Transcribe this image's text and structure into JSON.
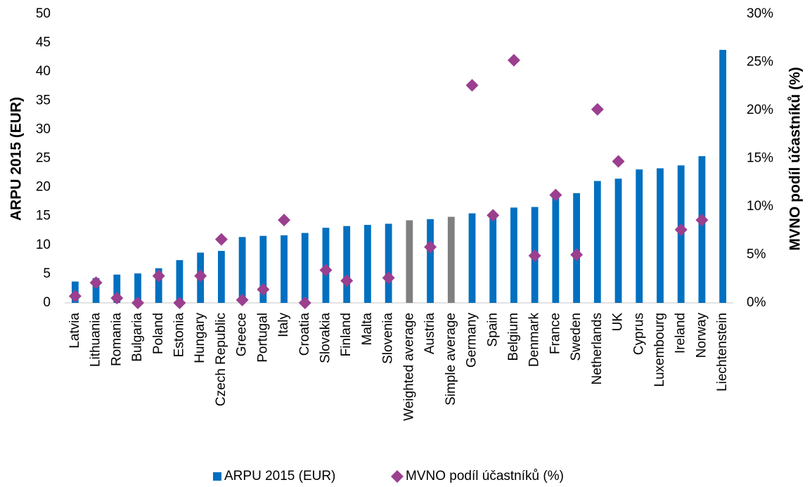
{
  "chart_data": {
    "type": "bar_scatter",
    "y_label": "ARPU 2015 (EUR)",
    "y2_label": "MVNO podíl účastníků (%)",
    "categories": [
      "Latvia",
      "Lithuania",
      "Romania",
      "Bulgaria",
      "Poland",
      "Estonia",
      "Hungary",
      "Czech Republic",
      "Greece",
      "Portugal",
      "Italy",
      "Croatia",
      "Slovakia",
      "Finland",
      "Malta",
      "Slovenia",
      "Weighted average",
      "Austria",
      "Simple average",
      "Germany",
      "Spain",
      "Belgium",
      "Denmark",
      "France",
      "Sweden",
      "Netherlands",
      "UK",
      "Cyprus",
      "Luxembourg",
      "Ireland",
      "Norway",
      "Liechtenstein"
    ],
    "series": [
      {
        "name": "ARPU 2015 (EUR)",
        "type": "bar",
        "color": "#0070c0",
        "colors": [
          "#0070c0",
          "#0070c0",
          "#0070c0",
          "#0070c0",
          "#0070c0",
          "#0070c0",
          "#0070c0",
          "#0070c0",
          "#0070c0",
          "#0070c0",
          "#0070c0",
          "#0070c0",
          "#0070c0",
          "#0070c0",
          "#0070c0",
          "#0070c0",
          "#808080",
          "#0070c0",
          "#808080",
          "#0070c0",
          "#0070c0",
          "#0070c0",
          "#0070c0",
          "#0070c0",
          "#0070c0",
          "#0070c0",
          "#0070c0",
          "#0070c0",
          "#0070c0",
          "#0070c0",
          "#0070c0",
          "#0070c0"
        ],
        "values": [
          3.7,
          4.3,
          4.9,
          5.1,
          6.0,
          7.4,
          8.7,
          9.0,
          11.4,
          11.6,
          11.7,
          12.1,
          13.0,
          13.3,
          13.5,
          13.7,
          14.3,
          14.5,
          14.9,
          15.5,
          15.6,
          16.5,
          16.6,
          18.5,
          19.0,
          21.1,
          21.5,
          23.1,
          23.3,
          23.8,
          25.4,
          43.8
        ]
      },
      {
        "name": "MVNO podíl účastníků (%)",
        "type": "scatter",
        "axis": "y2",
        "color": "#9b3f8f",
        "values": [
          0.7,
          2.1,
          0.5,
          0,
          2.8,
          0,
          2.8,
          6.6,
          0.3,
          1.4,
          8.6,
          0,
          3.4,
          2.3,
          null,
          2.6,
          null,
          5.8,
          null,
          22.6,
          9.1,
          25.2,
          4.9,
          11.2,
          5.0,
          20.1,
          14.7,
          null,
          null,
          7.6,
          8.6,
          null
        ]
      }
    ],
    "ylim": [
      0,
      50
    ],
    "yticks": [
      0,
      5,
      10,
      15,
      20,
      25,
      30,
      35,
      40,
      45,
      50
    ],
    "y2lim": [
      0,
      30
    ],
    "y2ticks": [
      {
        "value": 0,
        "label": "0%"
      },
      {
        "value": 5,
        "label": "5%"
      },
      {
        "value": 10,
        "label": "10%"
      },
      {
        "value": 15,
        "label": "15%"
      },
      {
        "value": 20,
        "label": "20%"
      },
      {
        "value": 25,
        "label": "25%"
      },
      {
        "value": 30,
        "label": "30%"
      }
    ],
    "grid": false,
    "legend": "bottom"
  }
}
